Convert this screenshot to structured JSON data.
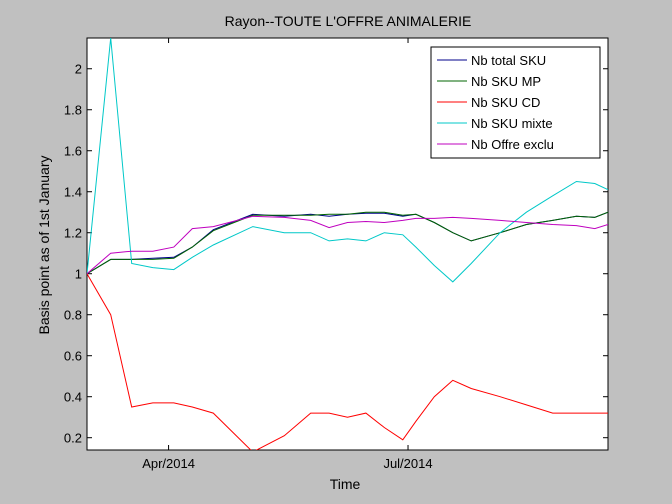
{
  "chart_data": {
    "type": "line",
    "title": "Rayon--TOUTE L'OFFRE ANIMALERIE",
    "xlabel": "Time",
    "ylabel": "Basis point as of 1st January",
    "x_ticks": [
      {
        "label": "Apr/2014",
        "date": "2014-04-01"
      },
      {
        "label": "Jul/2014",
        "date": "2014-07-01"
      }
    ],
    "xlim": [
      "2014-03-01",
      "2014-09-15"
    ],
    "ylim": [
      0.14,
      2.15
    ],
    "y_ticks": [
      "0.2",
      "0.4",
      "0.6",
      "0.8",
      "1",
      "1.2",
      "1.4",
      "1.6",
      "1.8",
      "2"
    ],
    "legend_placement": "top-right",
    "grid": false,
    "x": [
      "2014-03-01",
      "2014-03-10",
      "2014-03-18",
      "2014-03-26",
      "2014-04-03",
      "2014-04-10",
      "2014-04-18",
      "2014-05-03",
      "2014-05-15",
      "2014-05-25",
      "2014-06-01",
      "2014-06-08",
      "2014-06-15",
      "2014-06-22",
      "2014-06-29",
      "2014-07-04",
      "2014-07-11",
      "2014-07-18",
      "2014-07-25",
      "2014-08-05",
      "2014-08-15",
      "2014-08-25",
      "2014-09-03",
      "2014-09-10",
      "2014-09-15"
    ],
    "series": [
      {
        "name": "Nb total SKU",
        "color": "#00008b",
        "values": [
          1.0,
          1.07,
          1.07,
          1.075,
          1.08,
          1.13,
          1.215,
          1.29,
          1.28,
          1.29,
          1.28,
          1.29,
          1.295,
          1.295,
          1.28,
          1.29,
          1.25,
          1.2,
          1.16,
          1.2,
          1.24,
          1.26,
          1.28,
          1.275,
          1.3
        ]
      },
      {
        "name": "Nb SKU MP",
        "color": "#006400",
        "values": [
          1.0,
          1.07,
          1.07,
          1.07,
          1.075,
          1.13,
          1.21,
          1.285,
          1.285,
          1.285,
          1.29,
          1.29,
          1.3,
          1.3,
          1.285,
          1.29,
          1.25,
          1.2,
          1.16,
          1.2,
          1.24,
          1.26,
          1.28,
          1.275,
          1.3
        ]
      },
      {
        "name": "Nb SKU CD",
        "color": "#ff0000",
        "values": [
          1.0,
          0.8,
          0.35,
          0.37,
          0.37,
          0.35,
          0.32,
          0.13,
          0.21,
          0.32,
          0.32,
          0.3,
          0.32,
          0.25,
          0.19,
          0.28,
          0.4,
          0.48,
          0.44,
          0.4,
          0.36,
          0.32,
          0.32,
          0.32,
          0.32
        ]
      },
      {
        "name": "Nb SKU mixte",
        "color": "#00c8c8",
        "values": [
          1.0,
          2.15,
          1.05,
          1.03,
          1.02,
          1.08,
          1.14,
          1.23,
          1.2,
          1.2,
          1.16,
          1.17,
          1.16,
          1.2,
          1.19,
          1.13,
          1.04,
          0.96,
          1.05,
          1.2,
          1.3,
          1.38,
          1.45,
          1.44,
          1.41
        ]
      },
      {
        "name": "Nb Offre exclu",
        "color": "#bf00bf",
        "values": [
          1.0,
          1.1,
          1.11,
          1.11,
          1.13,
          1.22,
          1.23,
          1.28,
          1.275,
          1.26,
          1.225,
          1.25,
          1.255,
          1.25,
          1.26,
          1.27,
          1.27,
          1.275,
          1.27,
          1.26,
          1.25,
          1.24,
          1.235,
          1.22,
          1.24
        ]
      }
    ]
  }
}
